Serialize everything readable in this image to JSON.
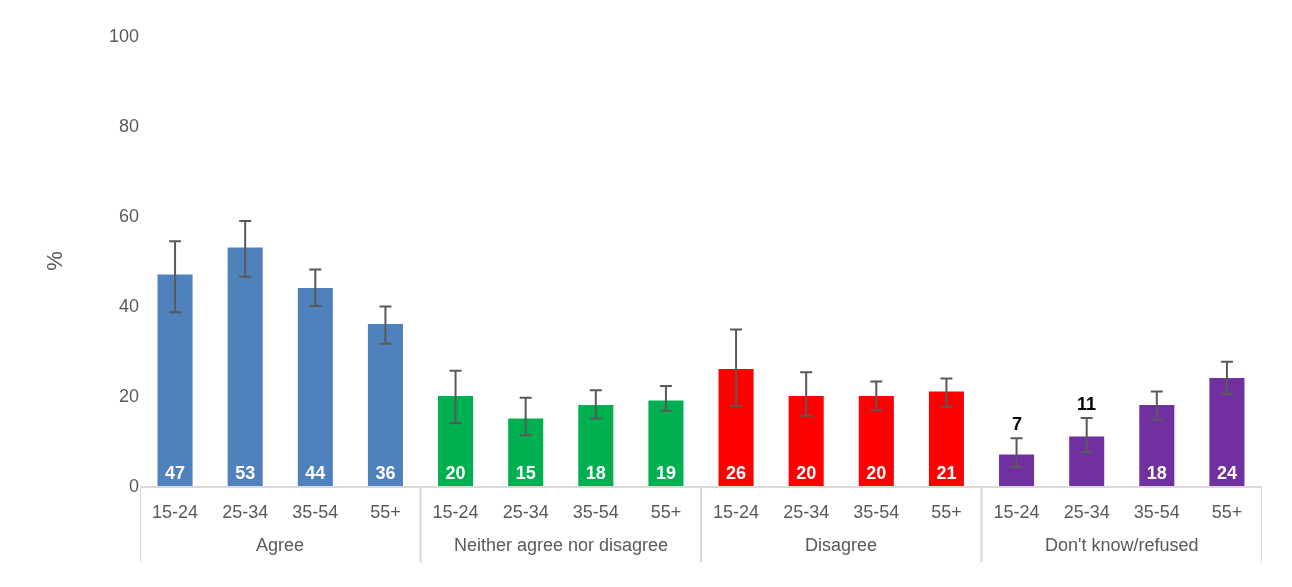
{
  "chart_data": {
    "type": "bar",
    "ylabel": "%",
    "ylim": [
      0,
      100
    ],
    "yticks": [
      0,
      20,
      40,
      60,
      80,
      100
    ],
    "grid": false,
    "legend": false,
    "data_labels": true,
    "categories": [
      "15-24",
      "25-34",
      "35-54",
      "55+",
      "15-24",
      "25-34",
      "35-54",
      "55+",
      "15-24",
      "25-34",
      "35-54",
      "55+",
      "15-24",
      "25-34",
      "35-54",
      "55+"
    ],
    "series": [
      {
        "name": "Agree",
        "color": "#4f81bd",
        "values": [
          47,
          53,
          44,
          36,
          null,
          null,
          null,
          null,
          null,
          null,
          null,
          null,
          null,
          null,
          null,
          null
        ],
        "errors": [
          [
            38.6,
            54.4
          ],
          [
            46.5,
            58.9
          ],
          [
            40.0,
            48.1
          ],
          [
            31.6,
            39.9
          ],
          null,
          null,
          null,
          null,
          null,
          null,
          null,
          null,
          null,
          null,
          null,
          null
        ]
      },
      {
        "name": "Neither agree nor disagree",
        "color": "#00b050",
        "values": [
          null,
          null,
          null,
          null,
          20,
          15,
          18,
          19,
          null,
          null,
          null,
          null,
          null,
          null,
          null,
          null
        ],
        "errors": [
          null,
          null,
          null,
          null,
          [
            14.0,
            25.6
          ],
          [
            11.3,
            19.6
          ],
          [
            15.0,
            21.3
          ],
          [
            16.7,
            22.2
          ],
          null,
          null,
          null,
          null,
          null,
          null,
          null,
          null
        ]
      },
      {
        "name": "Disagree",
        "color": "#ff0000",
        "values": [
          null,
          null,
          null,
          null,
          null,
          null,
          null,
          null,
          26,
          20,
          20,
          21,
          null,
          null,
          null,
          null
        ],
        "errors": [
          null,
          null,
          null,
          null,
          null,
          null,
          null,
          null,
          [
            17.7,
            34.8
          ],
          [
            15.6,
            25.3
          ],
          [
            16.9,
            23.2
          ],
          [
            17.6,
            23.9
          ],
          null,
          null,
          null,
          null
        ]
      },
      {
        "name": "Don't know/refused",
        "color": "#7030a0",
        "values": [
          null,
          null,
          null,
          null,
          null,
          null,
          null,
          null,
          null,
          null,
          null,
          null,
          7,
          11,
          18,
          24
        ],
        "errors": [
          null,
          null,
          null,
          null,
          null,
          null,
          null,
          null,
          null,
          null,
          null,
          null,
          [
            4.2,
            10.6
          ],
          [
            7.5,
            15.1
          ],
          [
            14.7,
            21.0
          ],
          [
            20.5,
            27.6
          ]
        ]
      }
    ]
  }
}
